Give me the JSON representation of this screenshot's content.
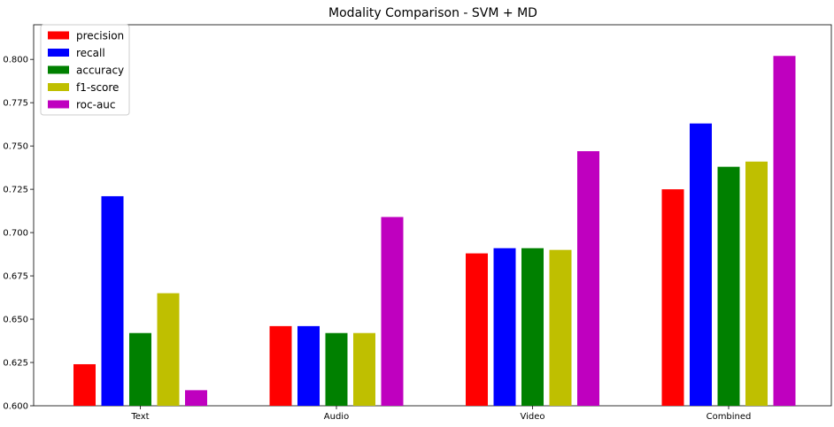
{
  "chart_data": {
    "type": "bar",
    "title": "Modality Comparison - SVM + MD",
    "xlabel": "",
    "ylabel": "",
    "categories": [
      "Text",
      "Audio",
      "Video",
      "Combined"
    ],
    "series": [
      {
        "name": "precision",
        "color": "#ff0000",
        "values": [
          0.624,
          0.646,
          0.688,
          0.725
        ]
      },
      {
        "name": "recall",
        "color": "#0000ff",
        "values": [
          0.721,
          0.646,
          0.691,
          0.763
        ]
      },
      {
        "name": "accuracy",
        "color": "#008000",
        "values": [
          0.642,
          0.642,
          0.691,
          0.738
        ]
      },
      {
        "name": "f1-score",
        "color": "#bfbf00",
        "values": [
          0.665,
          0.642,
          0.69,
          0.741
        ]
      },
      {
        "name": "roc-auc",
        "color": "#bf00bf",
        "values": [
          0.609,
          0.709,
          0.747,
          0.802
        ]
      }
    ],
    "ylim": [
      0.6,
      0.82
    ],
    "yticks": [
      "0.600",
      "0.625",
      "0.650",
      "0.675",
      "0.700",
      "0.725",
      "0.750",
      "0.775",
      "0.800"
    ],
    "grid": false,
    "legend_position": "top-left"
  }
}
